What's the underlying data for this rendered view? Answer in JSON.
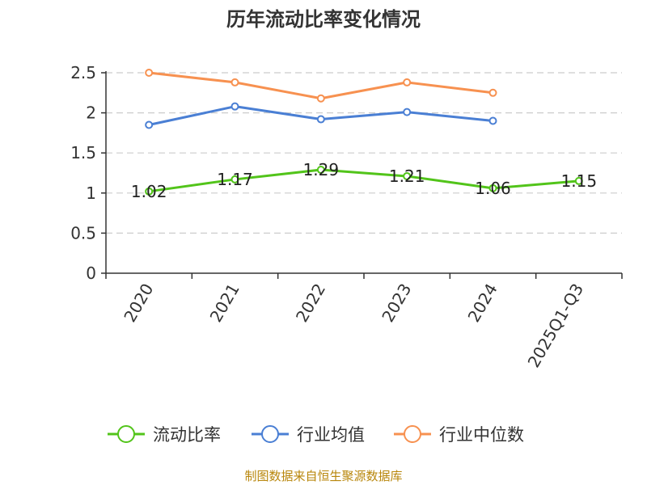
{
  "title": "历年流动比率变化情况",
  "source": "制图数据来自恒生聚源数据库",
  "chart_data": {
    "type": "line",
    "title": "历年流动比率变化情况",
    "categories": [
      "2020",
      "2021",
      "2022",
      "2023",
      "2024",
      "2025Q1-Q3"
    ],
    "ylim": [
      0,
      2.5
    ],
    "yticks": [
      0,
      0.5,
      1,
      1.5,
      2,
      2.5
    ],
    "ytick_labels": [
      "0",
      "0.5",
      "1",
      "1.5",
      "2",
      "2.5"
    ],
    "grid": true,
    "legend_position": "bottom",
    "series": [
      {
        "name": "流动比率",
        "color": "#52c41a",
        "values": [
          1.02,
          1.17,
          1.29,
          1.21,
          1.06,
          1.15
        ],
        "labels": [
          "1.02",
          "1.17",
          "1.29",
          "1.21",
          "1.06",
          "1.15"
        ],
        "show_labels": true
      },
      {
        "name": "行业均值",
        "color": "#4a7fd4",
        "values": [
          1.85,
          2.08,
          1.92,
          2.01,
          1.9,
          null
        ],
        "show_labels": false
      },
      {
        "name": "行业中位数",
        "color": "#f79150",
        "values": [
          2.5,
          2.38,
          2.18,
          2.38,
          2.25,
          null
        ],
        "show_labels": false
      }
    ]
  }
}
